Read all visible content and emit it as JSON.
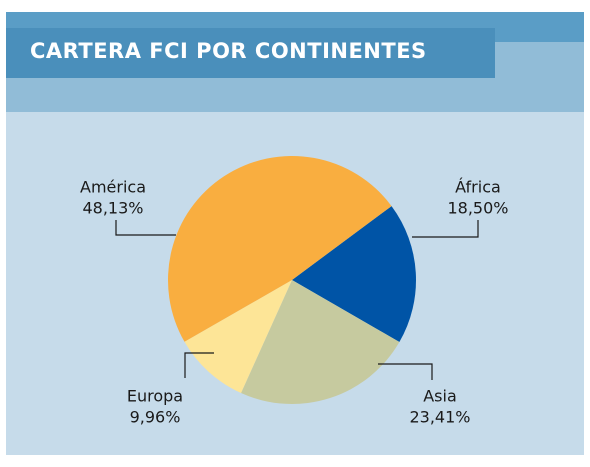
{
  "chart_data": {
    "type": "pie",
    "title": "CARTERA FCI POR CONTINENTES",
    "categories": [
      "África",
      "Asia",
      "Europa",
      "América"
    ],
    "values": [
      18.5,
      23.41,
      9.96,
      48.13
    ],
    "value_labels": [
      "18,50%",
      "23,41%",
      "9,96%",
      "48,13%"
    ],
    "colors": [
      "#0054a6",
      "#c6ca9f",
      "#fde597",
      "#f9ae40"
    ]
  }
}
